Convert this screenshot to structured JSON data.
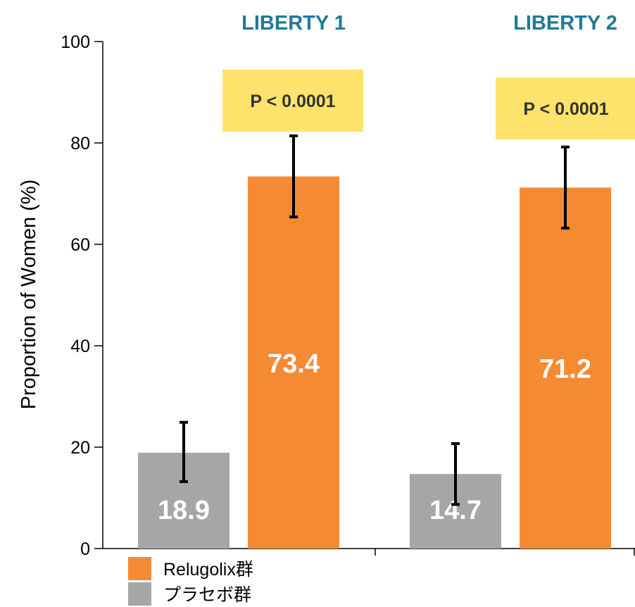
{
  "chart_data": {
    "type": "bar",
    "ylabel": "Proportion of Women (%)",
    "ylim": [
      0,
      100
    ],
    "yticks": [
      0,
      20,
      40,
      60,
      80,
      100
    ],
    "grid": false,
    "legend_position": "bottom-left",
    "groups": [
      {
        "title": "LIBERTY 1",
        "p_value": "P < 0.0001",
        "bars": [
          {
            "series": "プラセボ群",
            "value": 18.9,
            "label": "18.9",
            "err_low": 13.2,
            "err_high": 24.9
          },
          {
            "series": "Relugolix群",
            "value": 73.4,
            "label": "73.4",
            "err_low": 65.4,
            "err_high": 81.4
          }
        ]
      },
      {
        "title": "LIBERTY 2",
        "p_value": "P < 0.0001",
        "bars": [
          {
            "series": "プラセボ群",
            "value": 14.7,
            "label": "14.7",
            "err_low": 8.7,
            "err_high": 20.7
          },
          {
            "series": "Relugolix群",
            "value": 71.2,
            "label": "71.2",
            "err_low": 63.2,
            "err_high": 79.2
          }
        ]
      }
    ],
    "series": [
      {
        "name": "Relugolix群",
        "color": "#f68a33"
      },
      {
        "name": "プラセボ群",
        "color": "#a6a6a6"
      }
    ],
    "annotation_color": "#fde36b"
  }
}
